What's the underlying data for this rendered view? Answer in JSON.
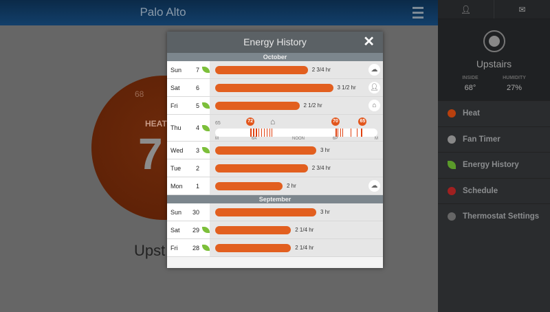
{
  "header": {
    "title": "Palo Alto"
  },
  "background": {
    "dial_setpoint": "68",
    "mode": "HEAT",
    "temp": "7",
    "device": "Upst"
  },
  "sidebar": {
    "sensor": {
      "name": "Upstairs",
      "inside_label": "INSIDE",
      "inside": "68°",
      "humidity_label": "HUMIDITY",
      "humidity": "27%"
    },
    "items": [
      {
        "label": "Heat",
        "icon": "heat-icon",
        "color": "#b8400e"
      },
      {
        "label": "Fan Timer",
        "icon": "fan-icon",
        "color": "#888"
      },
      {
        "label": "Energy History",
        "icon": "leaf-icon",
        "color": "#5a9a2a"
      },
      {
        "label": "Schedule",
        "icon": "schedule-icon",
        "color": "#a02020"
      },
      {
        "label": "Thermostat Settings",
        "icon": "gear-icon",
        "color": "#666"
      }
    ]
  },
  "modal": {
    "title": "Energy History",
    "close": "✕",
    "months": [
      {
        "name": "October",
        "days": [
          {
            "day": "Sun",
            "date": "7",
            "leaf": true,
            "hours": 2.75,
            "label": "2 3/4 hr",
            "icon": "weather-icon"
          },
          {
            "day": "Sat",
            "date": "6",
            "leaf": false,
            "hours": 3.5,
            "label": "3 1/2 hr",
            "icon": "user-icon"
          },
          {
            "day": "Fri",
            "date": "5",
            "leaf": true,
            "hours": 2.5,
            "label": "2 1/2 hr",
            "icon": "away-icon"
          },
          {
            "day": "Thu",
            "date": "4",
            "leaf": true,
            "timeline": true
          },
          {
            "day": "Wed",
            "date": "3",
            "leaf": true,
            "hours": 3,
            "label": "3 hr"
          },
          {
            "day": "Tue",
            "date": "2",
            "leaf": false,
            "hours": 2.75,
            "label": "2 3/4 hr"
          },
          {
            "day": "Mon",
            "date": "1",
            "leaf": false,
            "hours": 2,
            "label": "2 hr",
            "icon": "weather-icon"
          }
        ]
      },
      {
        "name": "September",
        "days": [
          {
            "day": "Sun",
            "date": "30",
            "leaf": false,
            "hours": 3,
            "label": "3 hr"
          },
          {
            "day": "Sat",
            "date": "29",
            "leaf": true,
            "hours": 2.25,
            "label": "2 1/4 hr"
          },
          {
            "day": "Fri",
            "date": "28",
            "leaf": true,
            "hours": 2.25,
            "label": "2 1/4 hr"
          }
        ]
      }
    ],
    "thu_timeline": {
      "start_temp": "65",
      "axis": [
        "M",
        "6A",
        "NOON",
        "6P",
        "M"
      ],
      "setpoints": [
        {
          "hour": 5.2,
          "temp": "72"
        },
        {
          "hour": 17.8,
          "temp": "70"
        },
        {
          "hour": 21.8,
          "temp": "65"
        }
      ],
      "away_hour": 8.5,
      "heating_hours": [
        5.2,
        5.6,
        6.0,
        6.4,
        6.8,
        7.2,
        7.6,
        8.0,
        8.3,
        17.8,
        18.1,
        18.5,
        18.8,
        20.0,
        20.9,
        21.6
      ]
    }
  }
}
